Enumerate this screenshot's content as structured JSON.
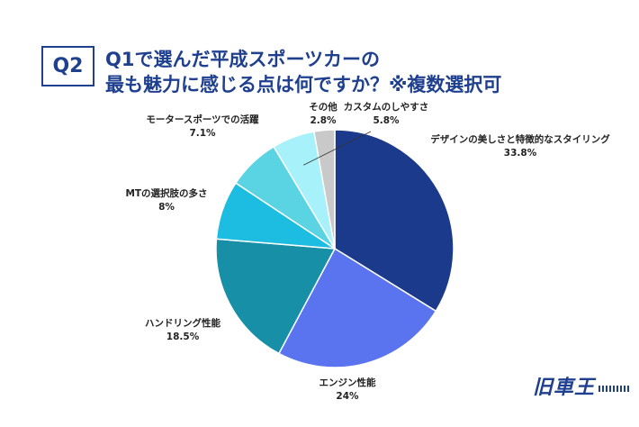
{
  "question": {
    "badge": "Q2",
    "title_line1": "Q1で選んだ平成スポーツカーの",
    "title_line2": "最も魅力に感じる点は何ですか？※複数選択可"
  },
  "logo_text": "旧車王",
  "chart_data": {
    "type": "pie",
    "title": "Q1で選んだ平成スポーツカーの 最も魅力に感じる点は何ですか？※複数選択可",
    "slices": [
      {
        "label": "デザインの美しさと特徴的なスタイリング",
        "value": 33.8,
        "value_label": "33.8%",
        "color": "#1b3a8c"
      },
      {
        "label": "エンジン性能",
        "value": 24,
        "value_label": "24%",
        "color": "#5a74f0"
      },
      {
        "label": "ハンドリング性能",
        "value": 18.5,
        "value_label": "18.5%",
        "color": "#178fa6"
      },
      {
        "label": "MTの選択肢の多さ",
        "value": 8,
        "value_label": "8%",
        "color": "#1cbde0"
      },
      {
        "label": "モータースポーツでの活躍",
        "value": 7.1,
        "value_label": "7.1%",
        "color": "#5ad3e3"
      },
      {
        "label": "カスタムのしやすさ",
        "value": 5.8,
        "value_label": "5.8%",
        "color": "#a6f1fa"
      },
      {
        "label": "その他",
        "value": 2.8,
        "value_label": "2.8%",
        "color": "#c9c9c9"
      }
    ]
  }
}
